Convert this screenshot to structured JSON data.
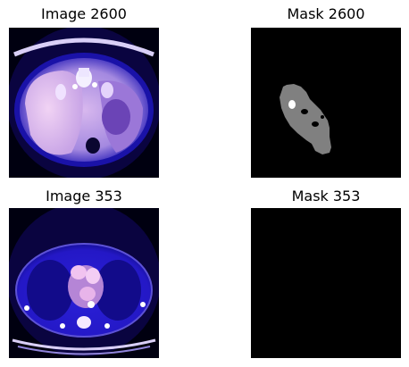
{
  "panels": [
    {
      "title": "Image 2600"
    },
    {
      "title": "Mask 2600"
    },
    {
      "title": "Image 353"
    },
    {
      "title": "Mask 353"
    }
  ]
}
